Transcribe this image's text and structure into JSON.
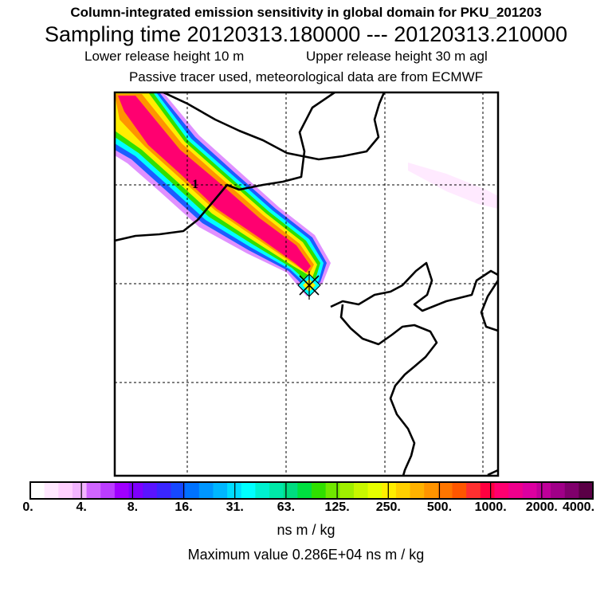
{
  "title": "Column-integrated emission sensitivity in global domain for PKU_201203",
  "sampling_time": "Sampling time   20120313.180000 --- 20120313.210000",
  "release": {
    "lower": "Lower release height   10 m",
    "upper": "Upper release height   30 m    agl"
  },
  "subtitle": "Passive tracer used, meteorological data are from ECMWF",
  "map_label": "1",
  "colorbar": {
    "labels": [
      "0.",
      "4.",
      "8.",
      "16.",
      "31.",
      "63.",
      "125.",
      "250.",
      "500.",
      "1000.",
      "2000.",
      "4000."
    ],
    "colors": [
      "#ffffff",
      "#ffe8ff",
      "#ffd0ff",
      "#f2b4ff",
      "#d066ff",
      "#bb3dff",
      "#a000ff",
      "#7e00ff",
      "#5a14ff",
      "#3a26ff",
      "#1648ff",
      "#0072ff",
      "#0096ff",
      "#00b6ff",
      "#00dcff",
      "#00ffff",
      "#00f0d0",
      "#00e8a8",
      "#00dc80",
      "#00e040",
      "#30e000",
      "#70e800",
      "#a0f000",
      "#c8f800",
      "#e6ff00",
      "#ffee00",
      "#ffd000",
      "#ffb200",
      "#ff9400",
      "#ff7600",
      "#ff5600",
      "#ff3030",
      "#ff0040",
      "#ff0070",
      "#f0008c",
      "#dc00a0",
      "#c0009a",
      "#a00088",
      "#80006c",
      "#5a0046"
    ]
  },
  "units": "ns m / kg",
  "max_value": "Maximum value  0.286E+04 ns m / kg",
  "colors": {
    "coast": "#000000",
    "frame": "#000000",
    "grid": "#000000"
  }
}
